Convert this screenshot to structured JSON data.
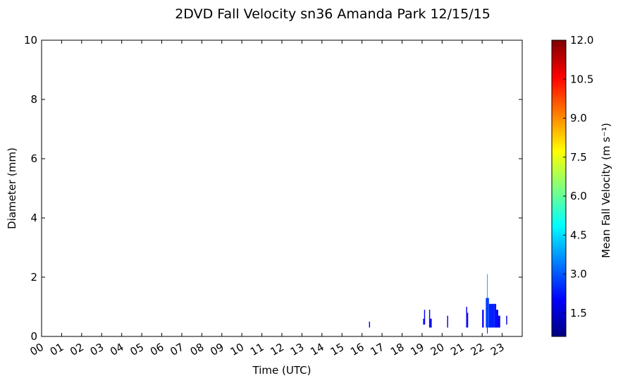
{
  "chart_data": {
    "type": "heatmap",
    "title": "2DVD Fall Velocity sn36 Amanda Park 12/15/15",
    "xlabel": "Time (UTC)",
    "ylabel": "Diameter (mm)",
    "x_ticks": [
      "00",
      "01",
      "02",
      "03",
      "04",
      "05",
      "06",
      "07",
      "08",
      "09",
      "10",
      "11",
      "12",
      "13",
      "14",
      "15",
      "16",
      "17",
      "18",
      "19",
      "20",
      "21",
      "22",
      "23"
    ],
    "xlim": [
      0,
      24
    ],
    "y_ticks": [
      "0",
      "2",
      "4",
      "6",
      "8",
      "10"
    ],
    "ylim": [
      0,
      10
    ],
    "colorbar": {
      "label": "Mean Fall Velocity (m s⁻¹)",
      "ticks": [
        "1.5",
        "3.0",
        "4.5",
        "6.0",
        "7.5",
        "9.0",
        "10.5",
        "12.0"
      ],
      "range": [
        0.6,
        12.0
      ],
      "colormap": [
        "#00007f",
        "#0000ff",
        "#007fff",
        "#00ffff",
        "#7fff7f",
        "#ffff00",
        "#ff7f00",
        "#ff0000",
        "#7f0000"
      ]
    },
    "cells": [
      {
        "t0": 16.35,
        "t1": 16.4,
        "d0": 0.3,
        "d1": 0.5,
        "v": 1.8
      },
      {
        "t0": 19.05,
        "t1": 19.1,
        "d0": 0.4,
        "d1": 0.6,
        "v": 1.7
      },
      {
        "t0": 19.1,
        "t1": 19.15,
        "d0": 0.4,
        "d1": 0.9,
        "v": 1.9
      },
      {
        "t0": 19.35,
        "t1": 19.4,
        "d0": 0.3,
        "d1": 0.9,
        "v": 1.9
      },
      {
        "t0": 19.4,
        "t1": 19.48,
        "d0": 0.3,
        "d1": 0.6,
        "v": 1.8
      },
      {
        "t0": 20.25,
        "t1": 20.3,
        "d0": 0.3,
        "d1": 0.7,
        "v": 1.8
      },
      {
        "t0": 21.2,
        "t1": 21.25,
        "d0": 0.3,
        "d1": 1.0,
        "v": 1.9
      },
      {
        "t0": 21.25,
        "t1": 21.3,
        "d0": 0.3,
        "d1": 0.8,
        "v": 1.8
      },
      {
        "t0": 22.0,
        "t1": 22.08,
        "d0": 0.3,
        "d1": 0.9,
        "v": 1.9
      },
      {
        "t0": 22.18,
        "t1": 22.24,
        "d0": 0.3,
        "d1": 1.3,
        "v": 2.8
      },
      {
        "t0": 22.24,
        "t1": 22.28,
        "d0": 1.3,
        "d1": 2.1,
        "v": 4.2
      },
      {
        "t0": 22.24,
        "t1": 22.28,
        "d0": 0.1,
        "d1": 1.3,
        "v": 2.6
      },
      {
        "t0": 22.28,
        "t1": 22.34,
        "d0": 0.3,
        "d1": 1.3,
        "v": 2.7
      },
      {
        "t0": 22.34,
        "t1": 22.6,
        "d0": 0.3,
        "d1": 1.1,
        "v": 2.4
      },
      {
        "t0": 22.6,
        "t1": 22.7,
        "d0": 0.3,
        "d1": 1.1,
        "v": 2.2
      },
      {
        "t0": 22.7,
        "t1": 22.8,
        "d0": 0.3,
        "d1": 0.9,
        "v": 2.0
      },
      {
        "t0": 22.8,
        "t1": 22.9,
        "d0": 0.3,
        "d1": 0.7,
        "v": 1.8
      },
      {
        "t0": 23.2,
        "t1": 23.25,
        "d0": 0.4,
        "d1": 0.7,
        "v": 1.7
      }
    ]
  }
}
